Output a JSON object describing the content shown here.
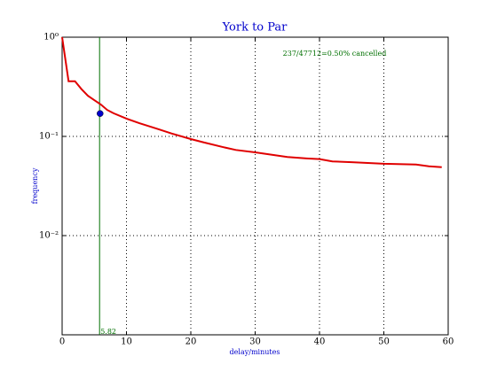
{
  "chart_data": {
    "type": "line",
    "title": "York to Par",
    "x_label": "delay/minutes",
    "y_label": "frequency",
    "x": [
      0,
      1,
      2,
      3,
      4,
      5,
      6,
      7,
      8,
      10,
      12,
      15,
      17,
      20,
      22,
      25,
      27,
      30,
      35,
      38,
      40,
      42,
      45,
      50,
      55,
      57,
      59
    ],
    "values": [
      1.0,
      0.36,
      0.36,
      0.3,
      0.257,
      0.232,
      0.21,
      0.185,
      0.171,
      0.151,
      0.136,
      0.118,
      0.107,
      0.094,
      0.087,
      0.078,
      0.073,
      0.069,
      0.062,
      0.06,
      0.059,
      0.056,
      0.055,
      0.053,
      0.052,
      0.05,
      0.049
    ],
    "color": "#e00000",
    "xlim": [
      0,
      60
    ],
    "xticks": [
      0,
      10,
      20,
      30,
      40,
      50,
      60
    ],
    "ylim": [
      0.001,
      1
    ],
    "y_scale": "log",
    "yticks": [
      {
        "value": 1,
        "label": "10⁰"
      },
      {
        "value": 0.1,
        "label": "10⁻¹"
      },
      {
        "value": 0.01,
        "label": "10⁻²"
      }
    ],
    "grid": true,
    "vline": 5.82,
    "vline_color": "#007000",
    "point": {
      "x": 5.9,
      "y": 0.17,
      "color": "#0000cc"
    },
    "annotation": "237/47712=0.50% cancelled"
  }
}
